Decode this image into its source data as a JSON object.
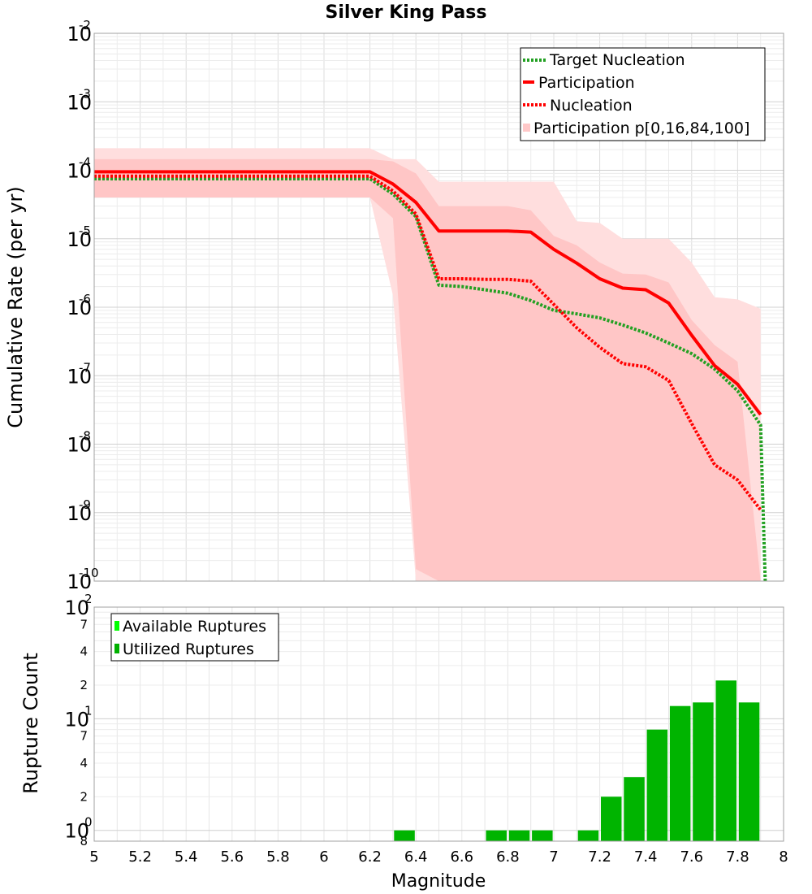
{
  "title": "Silver King Pass",
  "chart_data": [
    {
      "type": "line",
      "panel": "top",
      "title": "Silver King Pass",
      "xlabel": "",
      "ylabel": "Cumulative Rate (per yr)",
      "xlim": [
        5,
        8
      ],
      "ylim": [
        1e-10,
        0.01
      ],
      "yscale": "log",
      "y_ticks": [
        {
          "mantissa": "10",
          "exp": "-2"
        },
        {
          "mantissa": "10",
          "exp": "-3"
        },
        {
          "mantissa": "10",
          "exp": "-4"
        },
        {
          "mantissa": "10",
          "exp": "-5"
        },
        {
          "mantissa": "10",
          "exp": "-6"
        },
        {
          "mantissa": "10",
          "exp": "-7"
        },
        {
          "mantissa": "10",
          "exp": "-8"
        },
        {
          "mantissa": "10",
          "exp": "-9"
        },
        {
          "mantissa": "10",
          "exp": "-10"
        }
      ],
      "grid": true,
      "legend_position": "top-right",
      "legend": [
        {
          "label": "Target Nucleation",
          "color": "#22a022",
          "style": "dotted"
        },
        {
          "label": "Participation",
          "color": "#ff0000",
          "style": "solid"
        },
        {
          "label": "Nucleation",
          "color": "#ff0000",
          "style": "dotted"
        },
        {
          "label": "Participation p[0,16,84,100]",
          "color": "#ffc8c8",
          "style": "band"
        }
      ],
      "bands": [
        {
          "name": "p[0,100]",
          "color": "#ffdede",
          "x": [
            5.0,
            5.2,
            5.4,
            5.6,
            5.8,
            6.0,
            6.2,
            6.3,
            6.4,
            6.5,
            6.6,
            6.7,
            6.8,
            6.9,
            7.0,
            7.1,
            7.2,
            7.3,
            7.4,
            7.5,
            7.6,
            7.7,
            7.8,
            7.9
          ],
          "upper": [
            0.00021,
            0.00021,
            0.00021,
            0.00021,
            0.00021,
            0.00021,
            0.00021,
            0.000145,
            0.000145,
            6.8e-05,
            6.8e-05,
            6.8e-05,
            6.8e-05,
            6.8e-05,
            6.8e-05,
            1.8e-05,
            1.7e-05,
            1e-05,
            1e-05,
            1e-05,
            4.5e-06,
            1.4e-06,
            1.3e-06,
            9.5e-07
          ],
          "lower": [
            4e-05,
            4e-05,
            4e-05,
            4e-05,
            4e-05,
            4e-05,
            4e-05,
            1.5e-06,
            1e-10,
            1e-10,
            1e-10,
            1e-10,
            1e-10,
            1e-10,
            1e-10,
            1e-10,
            1e-10,
            1e-10,
            1e-10,
            1e-10,
            1e-10,
            1e-10,
            1e-10,
            1e-10
          ]
        },
        {
          "name": "p[16,84]",
          "color": "#ffc6c6",
          "x": [
            5.0,
            5.2,
            5.4,
            5.6,
            5.8,
            6.0,
            6.2,
            6.3,
            6.4,
            6.5,
            6.6,
            6.7,
            6.8,
            6.9,
            7.0,
            7.1,
            7.2,
            7.3,
            7.4,
            7.5,
            7.6,
            7.7,
            7.8,
            7.9
          ],
          "upper": [
            0.000145,
            0.000145,
            0.000145,
            0.000145,
            0.000145,
            0.000145,
            0.000145,
            0.000135,
            9e-05,
            3e-05,
            3e-05,
            3e-05,
            3e-05,
            2.6e-05,
            1.1e-05,
            8e-06,
            4.5e-06,
            3.1e-06,
            3e-06,
            2.3e-06,
            6.5e-07,
            2.8e-07,
            1.6e-07,
            1e-10
          ],
          "lower": [
            4e-05,
            4e-05,
            4e-05,
            4e-05,
            4e-05,
            4e-05,
            4e-05,
            2e-05,
            1.5e-10,
            1e-10,
            1e-10,
            1e-10,
            1e-10,
            1e-10,
            1e-10,
            1e-10,
            1e-10,
            1e-10,
            1e-10,
            1e-10,
            1e-10,
            1e-10,
            1e-10,
            1e-10
          ]
        }
      ],
      "series": [
        {
          "name": "Target Nucleation",
          "color": "#22a022",
          "style": "dotted",
          "x": [
            5.0,
            5.2,
            5.4,
            5.6,
            5.8,
            6.0,
            6.2,
            6.3,
            6.4,
            6.5,
            6.6,
            6.7,
            6.8,
            6.9,
            7.0,
            7.1,
            7.2,
            7.3,
            7.4,
            7.5,
            7.6,
            7.7,
            7.8,
            7.9,
            7.92
          ],
          "y": [
            7.5e-05,
            7.5e-05,
            7.5e-05,
            7.5e-05,
            7.5e-05,
            7.5e-05,
            7.5e-05,
            4.5e-05,
            2.1e-05,
            2.1e-06,
            2e-06,
            1.8e-06,
            1.6e-06,
            1.25e-06,
            9e-07,
            8e-07,
            7e-07,
            5.5e-07,
            4.2e-07,
            3e-07,
            2.1e-07,
            1.25e-07,
            6e-08,
            1.9e-08,
            1e-10
          ]
        },
        {
          "name": "Participation",
          "color": "#ff0000",
          "style": "solid",
          "x": [
            5.0,
            5.2,
            5.4,
            5.6,
            5.8,
            6.0,
            6.2,
            6.3,
            6.4,
            6.5,
            6.6,
            6.7,
            6.8,
            6.9,
            7.0,
            7.1,
            7.2,
            7.3,
            7.4,
            7.5,
            7.6,
            7.7,
            7.8,
            7.9
          ],
          "y": [
            9.5e-05,
            9.5e-05,
            9.5e-05,
            9.5e-05,
            9.5e-05,
            9.5e-05,
            9.5e-05,
            6.3e-05,
            3.4e-05,
            1.3e-05,
            1.3e-05,
            1.3e-05,
            1.3e-05,
            1.25e-05,
            7e-06,
            4.4e-06,
            2.6e-06,
            1.9e-06,
            1.8e-06,
            1.15e-06,
            3.9e-07,
            1.4e-07,
            7.5e-08,
            2.7e-08
          ]
        },
        {
          "name": "Nucleation",
          "color": "#ff0000",
          "style": "dotted",
          "x": [
            5.0,
            5.2,
            5.4,
            5.6,
            5.8,
            6.0,
            6.2,
            6.3,
            6.4,
            6.5,
            6.6,
            6.7,
            6.8,
            6.9,
            7.0,
            7.1,
            7.2,
            7.3,
            7.4,
            7.5,
            7.6,
            7.7,
            7.8,
            7.9
          ],
          "y": [
            8.2e-05,
            8.2e-05,
            8.2e-05,
            8.2e-05,
            8.2e-05,
            8.2e-05,
            8.2e-05,
            5e-05,
            2.3e-05,
            2.6e-06,
            2.6e-06,
            2.55e-06,
            2.55e-06,
            2.4e-06,
            1.1e-06,
            5e-07,
            2.6e-07,
            1.5e-07,
            1.35e-07,
            8.5e-08,
            2e-08,
            5e-09,
            3e-09,
            1.1e-09
          ]
        }
      ]
    },
    {
      "type": "bar",
      "panel": "bottom",
      "xlabel": "Magnitude",
      "ylabel": "Rupture Count",
      "xlim": [
        5,
        8
      ],
      "ylim": [
        0.8,
        100
      ],
      "yscale": "log",
      "x_ticks": [
        "5",
        "5.2",
        "5.4",
        "5.6",
        "5.8",
        "6",
        "6.2",
        "6.4",
        "6.6",
        "6.8",
        "7",
        "7.2",
        "7.4",
        "7.6",
        "7.8",
        "8"
      ],
      "y_ticks": [
        {
          "mantissa": "10",
          "exp": "2"
        },
        {
          "mantissa": "10",
          "exp": "1"
        },
        {
          "mantissa": "10",
          "exp": "0"
        }
      ],
      "y_minor_labels": [
        {
          "label": "7",
          "value": 70
        },
        {
          "label": "4",
          "value": 40
        },
        {
          "label": "2",
          "value": 20
        },
        {
          "label": "7",
          "value": 7
        },
        {
          "label": "4",
          "value": 4
        },
        {
          "label": "2",
          "value": 2
        },
        {
          "label": "8",
          "value": 0.8
        }
      ],
      "grid": true,
      "legend_position": "top-left",
      "legend": [
        {
          "label": "Available Ruptures",
          "color": "#00ff00"
        },
        {
          "label": "Utilized Ruptures",
          "color": "#00b000"
        }
      ],
      "bar_width": 0.09,
      "series": [
        {
          "name": "Utilized Ruptures",
          "color": "#00b400",
          "x": [
            6.35,
            6.75,
            6.85,
            6.95,
            7.15,
            7.25,
            7.35,
            7.45,
            7.55,
            7.65,
            7.75,
            7.85
          ],
          "values": [
            1,
            1,
            1,
            1,
            1,
            2,
            3,
            8,
            13,
            14,
            22,
            14
          ]
        }
      ]
    }
  ]
}
